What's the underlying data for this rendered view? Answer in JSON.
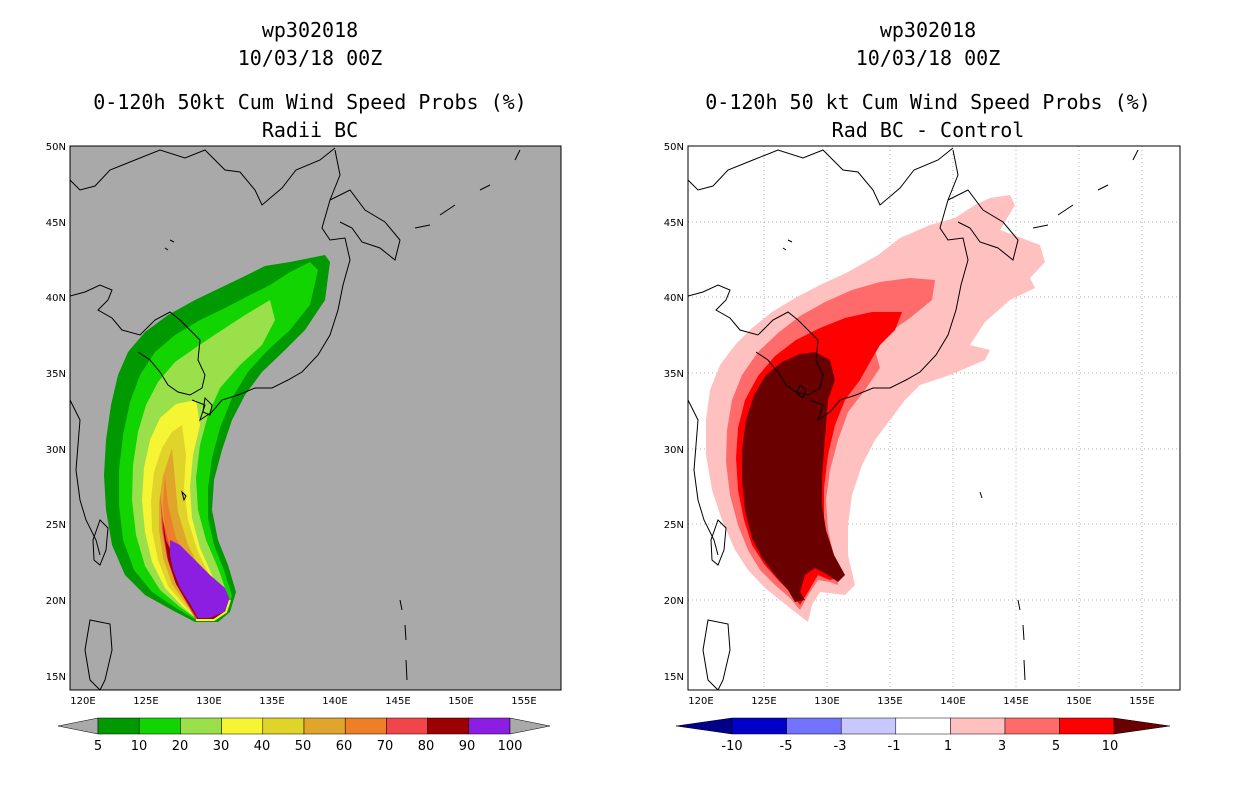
{
  "left": {
    "title_line1": "wp302018",
    "title_line2": "10/03/18 00Z",
    "title_line3": "0-120h 50kt Cum Wind Speed Probs (%)",
    "title_line4": "Radii BC",
    "colors": {
      "background": "#a9a9a9"
    },
    "legend": {
      "labels": [
        "5",
        "10",
        "20",
        "30",
        "40",
        "50",
        "60",
        "70",
        "80",
        "90",
        "100"
      ],
      "colors": [
        "#009900",
        "#11d400",
        "#99e04a",
        "#f5f533",
        "#e0d42b",
        "#e0a52b",
        "#ec7f28",
        "#f0464b",
        "#9d0000",
        "#8b1ee0"
      ],
      "arrow_color": "#a9a9a9"
    }
  },
  "right": {
    "title_line1": "wp302018",
    "title_line2": "10/03/18 00Z",
    "title_line3": "0-120h 50 kt Cum Wind Speed Probs (%)",
    "title_line4": "Rad BC - Control",
    "colors": {
      "background": "#ffffff"
    },
    "legend": {
      "labels": [
        "-10",
        "-5",
        "-3",
        "-1",
        "1",
        "3",
        "5",
        "10"
      ],
      "colors": [
        "#0000c8",
        "#7373ff",
        "#c8c8ff",
        "#ffffff",
        "#ffc0c0",
        "#ff6a6a",
        "#ff0000"
      ],
      "low_arrow_color": "#00008b",
      "high_arrow_color": "#6b0000"
    }
  },
  "axes": {
    "lon_labels": [
      "120E",
      "125E",
      "130E",
      "135E",
      "140E",
      "145E",
      "150E",
      "155E"
    ],
    "lat_labels": [
      "15N",
      "20N",
      "25N",
      "30N",
      "35N",
      "40N",
      "45N",
      "50N"
    ]
  }
}
